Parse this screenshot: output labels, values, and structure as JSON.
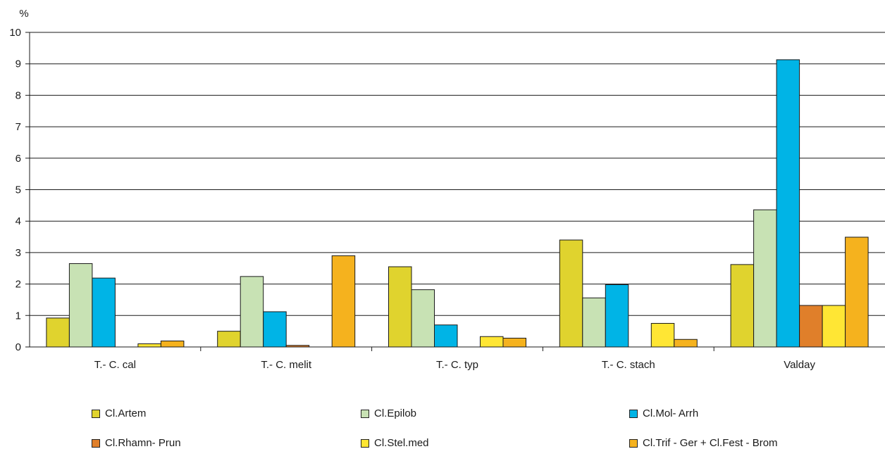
{
  "chart_data": {
    "type": "bar",
    "ylabel": "%",
    "ylim": [
      0,
      10
    ],
    "yticks": [
      "0",
      "1",
      "2",
      "3",
      "4",
      "5",
      "6",
      "7",
      "8",
      "9",
      "10"
    ],
    "categories": [
      "T.- C. cal",
      "T.- C. melit",
      "T.- C. typ",
      "T.- C. stach",
      "Valday"
    ],
    "series": [
      {
        "name": "Cl.Artem",
        "color": "#e0d32e",
        "values": [
          0.92,
          0.5,
          2.55,
          3.4,
          2.62
        ]
      },
      {
        "name": "Cl.Epilob",
        "color": "#c8e2b4",
        "values": [
          2.65,
          2.24,
          1.82,
          1.56,
          4.36
        ]
      },
      {
        "name": "Cl.Mol- Arrh",
        "color": "#00b4e6",
        "values": [
          2.19,
          1.12,
          0.7,
          1.98,
          9.13
        ]
      },
      {
        "name": "Cl.Rhamn- Prun",
        "color": "#e07f2a",
        "values": [
          0,
          0.05,
          0,
          0,
          1.32
        ]
      },
      {
        "name": "Cl.Stel.med",
        "color": "#ffe634",
        "values": [
          0.1,
          0,
          0.33,
          0.75,
          1.32
        ]
      },
      {
        "name": "Cl.Trif - Ger + Cl.Fest - Brom",
        "color": "#f5b21e",
        "values": [
          0.19,
          2.9,
          0.28,
          0.24,
          3.49
        ]
      }
    ],
    "legend_position": "bottom",
    "grid": true
  }
}
